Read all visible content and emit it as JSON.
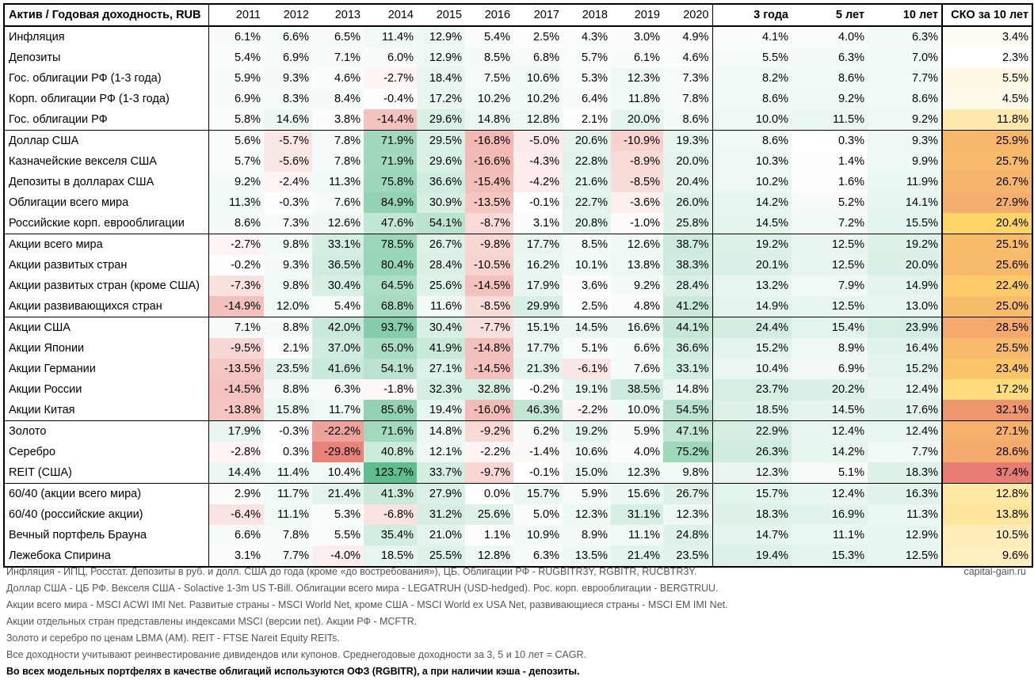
{
  "table": {
    "corner": "Актив / Годовая доходность, RUB",
    "years": [
      "2011",
      "2012",
      "2013",
      "2014",
      "2015",
      "2016",
      "2017",
      "2018",
      "2019",
      "2020"
    ],
    "periods": [
      "3 года",
      "5 лет",
      "10 лет"
    ],
    "sko": "СКО за 10 лет",
    "groups": [
      [
        {
          "name": "Инфляция",
          "v": [
            6.1,
            6.6,
            6.5,
            11.4,
            12.9,
            5.4,
            2.5,
            4.3,
            3.0,
            4.9
          ],
          "p": [
            4.1,
            4.0,
            6.3
          ],
          "s": 3.4
        },
        {
          "name": "Депозиты",
          "v": [
            5.4,
            6.9,
            7.1,
            6.0,
            12.9,
            8.5,
            6.8,
            5.7,
            6.1,
            4.6
          ],
          "p": [
            5.5,
            6.3,
            7.0
          ],
          "s": 2.3
        },
        {
          "name": "Гос. облигации РФ (1-3 года)",
          "v": [
            5.9,
            9.3,
            4.6,
            -2.7,
            18.4,
            7.5,
            10.6,
            5.3,
            12.3,
            7.3
          ],
          "p": [
            8.2,
            8.6,
            7.7
          ],
          "s": 5.5
        },
        {
          "name": "Корп. облигации РФ (1-3 года)",
          "v": [
            6.9,
            8.3,
            8.4,
            -0.4,
            17.2,
            10.2,
            10.2,
            6.4,
            11.8,
            7.8
          ],
          "p": [
            8.6,
            9.2,
            8.6
          ],
          "s": 4.5
        },
        {
          "name": "Гос. облигации РФ",
          "v": [
            5.8,
            14.6,
            3.8,
            -14.4,
            29.6,
            14.8,
            12.8,
            2.1,
            20.0,
            8.6
          ],
          "p": [
            10.0,
            11.5,
            9.2
          ],
          "s": 11.8
        }
      ],
      [
        {
          "name": "Доллар США",
          "v": [
            5.6,
            -5.7,
            7.8,
            71.9,
            29.5,
            -16.8,
            -5.0,
            20.6,
            -10.9,
            19.3
          ],
          "p": [
            8.6,
            0.3,
            9.3
          ],
          "s": 25.9
        },
        {
          "name": "Казначейские векселя США",
          "v": [
            5.7,
            -5.6,
            7.8,
            71.9,
            29.6,
            -16.6,
            -4.3,
            22.8,
            -8.9,
            20.0
          ],
          "p": [
            10.3,
            1.4,
            9.9
          ],
          "s": 25.7
        },
        {
          "name": "Депозиты в долларах США",
          "v": [
            9.2,
            -2.4,
            11.3,
            75.8,
            36.6,
            -15.4,
            -4.2,
            21.6,
            -8.5,
            20.4
          ],
          "p": [
            10.2,
            1.6,
            11.9
          ],
          "s": 26.7
        },
        {
          "name": "Облигации всего мира",
          "v": [
            11.3,
            -0.3,
            7.6,
            84.9,
            30.9,
            -13.5,
            -0.1,
            22.7,
            -3.6,
            26.0
          ],
          "p": [
            14.2,
            5.2,
            14.1
          ],
          "s": 27.9
        },
        {
          "name": "Российские корп. еврооблигации",
          "v": [
            8.6,
            7.3,
            12.6,
            47.6,
            54.1,
            -8.7,
            3.1,
            20.8,
            -1.0,
            25.8
          ],
          "p": [
            14.5,
            7.2,
            15.5
          ],
          "s": 20.4
        }
      ],
      [
        {
          "name": "Акции всего мира",
          "v": [
            -2.7,
            9.8,
            33.1,
            78.5,
            26.7,
            -9.8,
            17.7,
            8.5,
            12.6,
            38.7
          ],
          "p": [
            19.2,
            12.5,
            19.2
          ],
          "s": 25.1
        },
        {
          "name": "Акции развитых стран",
          "v": [
            -0.2,
            9.3,
            36.5,
            80.4,
            28.4,
            -10.5,
            16.2,
            10.1,
            13.8,
            38.3
          ],
          "p": [
            20.1,
            12.5,
            20.0
          ],
          "s": 25.6
        },
        {
          "name": "Акции развитых стран (кроме США)",
          "v": [
            -7.3,
            9.8,
            30.4,
            64.5,
            25.6,
            -14.5,
            17.9,
            3.6,
            9.2,
            28.4
          ],
          "p": [
            13.2,
            7.9,
            14.9
          ],
          "s": 22.4
        },
        {
          "name": "Акции развивающихся стран",
          "v": [
            -14.9,
            12.0,
            5.4,
            68.8,
            11.6,
            -8.5,
            29.9,
            2.5,
            4.8,
            41.2
          ],
          "p": [
            14.9,
            12.5,
            13.0
          ],
          "s": 25.0
        }
      ],
      [
        {
          "name": "Акции США",
          "v": [
            7.1,
            8.8,
            42.0,
            93.7,
            30.4,
            -7.7,
            15.1,
            14.5,
            16.6,
            44.1
          ],
          "p": [
            24.4,
            15.4,
            23.9
          ],
          "s": 28.5
        },
        {
          "name": "Акции Японии",
          "v": [
            -9.5,
            2.1,
            37.0,
            65.0,
            41.9,
            -14.8,
            17.7,
            5.1,
            6.6,
            36.6
          ],
          "p": [
            15.2,
            8.9,
            16.4
          ],
          "s": 25.5
        },
        {
          "name": "Акции Германии",
          "v": [
            -13.5,
            23.5,
            41.6,
            54.1,
            27.1,
            -14.5,
            21.3,
            -6.1,
            7.6,
            33.1
          ],
          "p": [
            10.4,
            6.9,
            15.2
          ],
          "s": 23.4
        },
        {
          "name": "Акции России",
          "v": [
            -14.5,
            8.8,
            6.3,
            -1.8,
            32.3,
            32.8,
            -0.2,
            19.1,
            38.5,
            14.8
          ],
          "p": [
            23.7,
            20.2,
            12.4
          ],
          "s": 17.2
        },
        {
          "name": "Акции Китая",
          "v": [
            -13.8,
            15.8,
            11.7,
            85.6,
            19.4,
            -16.0,
            46.3,
            -2.2,
            10.0,
            54.5
          ],
          "p": [
            18.5,
            14.5,
            17.6
          ],
          "s": 32.1
        }
      ],
      [
        {
          "name": "Золото",
          "v": [
            17.9,
            -0.3,
            -22.2,
            71.6,
            14.8,
            -9.2,
            6.2,
            19.2,
            5.9,
            47.1
          ],
          "p": [
            22.9,
            12.4,
            12.4
          ],
          "s": 27.1
        },
        {
          "name": "Серебро",
          "v": [
            -2.8,
            0.3,
            -29.8,
            40.8,
            12.1,
            -2.2,
            -1.4,
            10.6,
            4.0,
            75.2
          ],
          "p": [
            26.3,
            14.2,
            7.7
          ],
          "s": 28.6
        },
        {
          "name": "REIT (США)",
          "v": [
            14.4,
            11.4,
            10.4,
            123.7,
            33.7,
            -9.7,
            -0.1,
            15.0,
            12.3,
            9.8
          ],
          "p": [
            12.3,
            5.1,
            18.3
          ],
          "s": 37.4
        }
      ],
      [
        {
          "name": "60/40 (акции всего мира)",
          "v": [
            2.9,
            11.7,
            21.4,
            41.3,
            27.9,
            0.0,
            15.7,
            5.9,
            15.6,
            26.7
          ],
          "p": [
            15.7,
            12.4,
            16.3
          ],
          "s": 12.8
        },
        {
          "name": "60/40 (российские акции)",
          "v": [
            -6.4,
            11.1,
            5.3,
            -6.8,
            31.2,
            25.6,
            5.0,
            12.3,
            31.1,
            12.3
          ],
          "p": [
            18.3,
            16.9,
            11.3
          ],
          "s": 13.8
        },
        {
          "name": "Вечный портфель Брауна",
          "v": [
            6.6,
            7.8,
            5.5,
            35.4,
            21.0,
            1.1,
            10.9,
            8.9,
            11.1,
            24.8
          ],
          "p": [
            14.7,
            11.1,
            12.9
          ],
          "s": 10.5
        },
        {
          "name": "Лежебока Спирина",
          "v": [
            3.1,
            7.7,
            -4.0,
            18.5,
            25.5,
            12.8,
            6.3,
            13.5,
            21.4,
            23.5
          ],
          "p": [
            19.4,
            15.3,
            12.5
          ],
          "s": 9.6
        }
      ]
    ]
  },
  "footnotes": [
    "Инфляция - ИПЦ, Росстат. Депозиты в руб. и долл. США до года (кроме «до востребования»), ЦБ. Облигации РФ - RUGBITR3Y, RGBITR, RUCBTR3Y.",
    "Доллар США - ЦБ РФ. Векселя США - Solactive 1-3m US T-Bill. Облигации всего мира - LEGATRUH (USD-hedged). Рос. корп. еврооблигации - BERGTRUU.",
    "Акции всего мира - MSCI ACWI IMI Net. Развитые страны - MSCI World Net, кроме США - MSCI World ex USA Net, развивающиеся страны - MSCI EM IMI Net.",
    "Акции отдельных стран представлены индексами MSCI (версии net). Акции РФ - MCFTR.",
    "Золото и серебро по ценам LBMA (AM). REIT - FTSE Nareit Equity REITs.",
    "Все доходности учитывают реинвестирование дивидендов или купонов. Среднегодовые доходности за 3, 5 и 10 лет = CAGR."
  ],
  "footnote_bold": "Во всех модельных портфелях в качестве облигаций используются ОФЗ (RGBITR), а при наличии кэша - депозиты.",
  "source": "capital-gain.ru",
  "colors": {
    "positive": "#57bb8a",
    "negative": "#e67c73",
    "sko_low": "#ffffff",
    "sko_mid": "#ffd666",
    "sko_high": "#e67c73"
  }
}
